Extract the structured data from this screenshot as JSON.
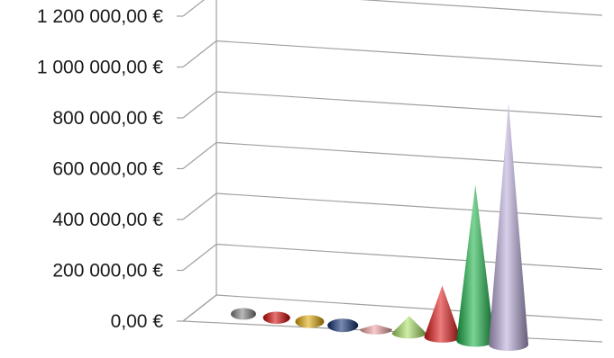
{
  "chart_data": {
    "type": "bar",
    "style": "3d-cone",
    "title": "",
    "xlabel": "",
    "ylabel": "",
    "ylim": [
      0,
      1200000
    ],
    "yticks": [
      0,
      200000,
      400000,
      600000,
      800000,
      1000000,
      1200000
    ],
    "ytick_labels": [
      "0,00 €",
      "200 000,00 €",
      "400 000,00 €",
      "600 000,00 €",
      "800 000,00 €",
      "1 000 000,00 €",
      "1 200 000,00 €"
    ],
    "grid": true,
    "legend": "none",
    "values": [
      0,
      0,
      0,
      0,
      20000,
      70000,
      210000,
      640000,
      990000
    ],
    "colors": [
      "#808080",
      "#d40000",
      "#e0a800",
      "#0a2a6e",
      "#f2a0a0",
      "#a8e060",
      "#e01010",
      "#10b040",
      "#b8a8d8"
    ]
  }
}
